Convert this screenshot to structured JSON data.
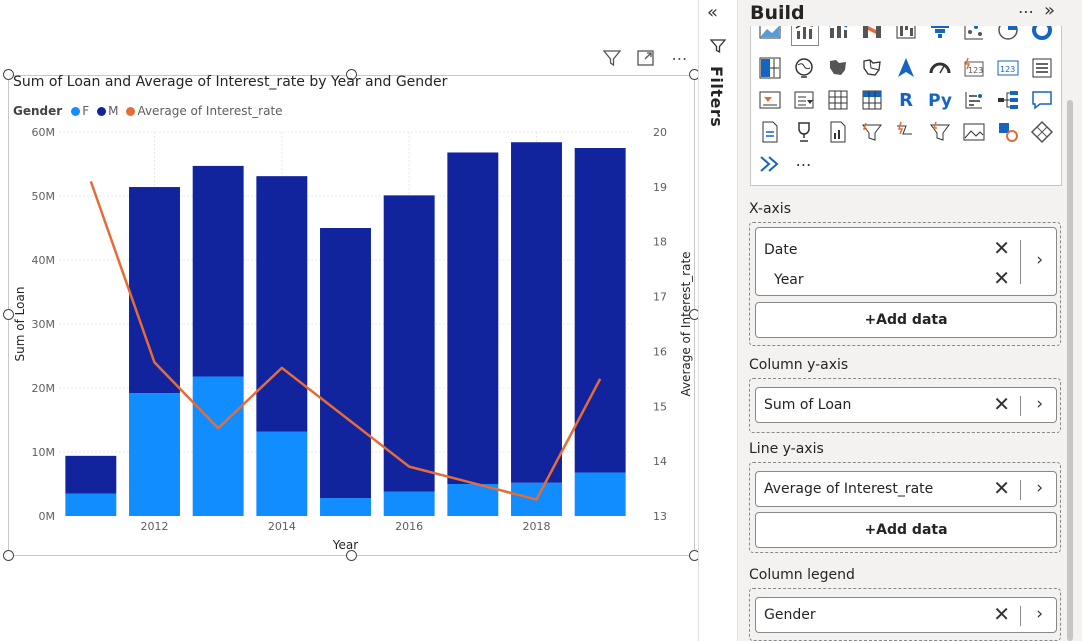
{
  "visual_header": {
    "filter_icon": "funnel-icon",
    "focus_icon": "focus-mode-icon",
    "more_label": "⋯"
  },
  "chart_data": {
    "type": "bar",
    "stacked": true,
    "title": "Sum of Loan and Average of Interest_rate by Year and Gender",
    "legend": {
      "title": "Gender",
      "placement": "top-left",
      "entries": [
        "F",
        "M",
        "Average of Interest_rate"
      ]
    },
    "categories": [
      2011,
      2012,
      2013,
      2014,
      2015,
      2016,
      2017,
      2018,
      2019
    ],
    "series": [
      {
        "name": "F",
        "color": "#118dff",
        "values": [
          3.5,
          19.2,
          21.8,
          13.2,
          2.8,
          3.8,
          5.0,
          5.2,
          6.8
        ]
      },
      {
        "name": "M",
        "color": "#12239e",
        "values": [
          5.9,
          32.2,
          32.9,
          39.9,
          42.2,
          46.3,
          51.8,
          53.2,
          50.7
        ]
      }
    ],
    "line_series": {
      "name": "Average of Interest_rate",
      "color": "#e66c37",
      "values": [
        19.1,
        15.8,
        14.6,
        15.7,
        14.8,
        13.9,
        13.6,
        13.3,
        15.5
      ]
    },
    "xlabel": "Year",
    "ylabel": "Sum of Loan",
    "y2label": "Average of Interest_rate",
    "x_ticks": [
      "2012",
      "2014",
      "2016",
      "2018"
    ],
    "y_ticks": [
      "0M",
      "10M",
      "20M",
      "30M",
      "40M",
      "50M",
      "60M"
    ],
    "y2_ticks": [
      "13",
      "14",
      "15",
      "16",
      "17",
      "18",
      "19",
      "20"
    ],
    "ylim": [
      0,
      60
    ],
    "y2lim": [
      13,
      20
    ],
    "grid": true
  },
  "filters_pane": {
    "label": "Filters",
    "collapse_label": "«"
  },
  "build_pane": {
    "title": "Build",
    "more_label": "⋯",
    "expand_label": "»",
    "gallery_more": "⋯",
    "x_axis": {
      "label": "X-axis",
      "fields": [
        "Date",
        "Year"
      ],
      "add_label": "+Add data"
    },
    "column_y_axis": {
      "label": "Column y-axis",
      "fields": [
        "Sum of Loan"
      ]
    },
    "line_y_axis": {
      "label": "Line y-axis",
      "fields": [
        "Average of Interest_rate"
      ],
      "add_label": "+Add data"
    },
    "column_legend": {
      "label": "Column legend",
      "fields": [
        "Gender"
      ]
    }
  }
}
